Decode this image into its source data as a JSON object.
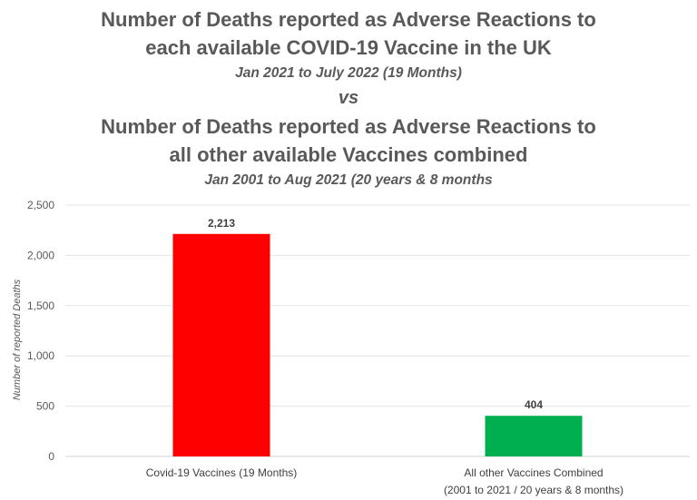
{
  "title": {
    "line1": "Number of Deaths reported as Adverse Reactions to",
    "line2": "each available COVID-19 Vaccine in the UK",
    "line3": "Jan 2021 to July 2022 (19 Months)",
    "vs": "vs",
    "line4": "Number of Deaths reported as Adverse Reactions to",
    "line5": "all other available Vaccines combined",
    "line6": "Jan 2001 to Aug 2021 (20 years & 8 months"
  },
  "chart_data": {
    "type": "bar",
    "categories": [
      [
        "Covid-19 Vaccines (19 Months)"
      ],
      [
        "All other Vaccines Combined",
        "(2001 to 2021 / 20 years & 8 months)"
      ]
    ],
    "values": [
      2213,
      404
    ],
    "value_labels": [
      "2,213",
      "404"
    ],
    "bar_colors": [
      "#ff0000",
      "#00b050"
    ],
    "ylabel": "Number of reported Deaths",
    "ylim": [
      0,
      2500
    ],
    "yticks": [
      0,
      500,
      1000,
      1500,
      2000,
      2500
    ],
    "ytick_labels": [
      "0",
      "500",
      "1,000",
      "1,500",
      "2,000",
      "2,500"
    ],
    "grid": true
  }
}
